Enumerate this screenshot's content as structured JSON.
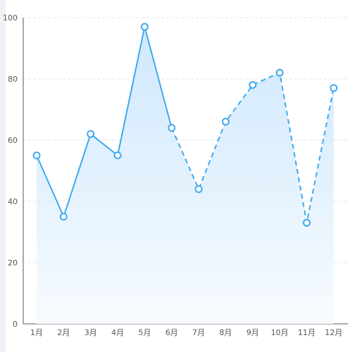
{
  "chart_data": {
    "type": "area",
    "categories": [
      "1月",
      "2月",
      "3月",
      "4月",
      "5月",
      "6月",
      "7月",
      "8月",
      "9月",
      "10月",
      "11月",
      "12月"
    ],
    "series": [
      {
        "values": [
          55,
          35,
          62,
          55,
          97,
          64,
          44,
          66,
          78,
          82,
          33,
          77
        ],
        "solid_until_index": 5
      }
    ],
    "ylim": [
      0,
      100
    ],
    "yticks": [
      0,
      20,
      40,
      60,
      80,
      100
    ],
    "grid": "horizontal-dashed",
    "colors": {
      "line": "#3fa9ee",
      "area_top": "#cfe8fd",
      "area_bottom": "#f7fbff",
      "grid": "#dde3ea",
      "axis": "#555555",
      "point_fill": "#ffffff"
    }
  }
}
